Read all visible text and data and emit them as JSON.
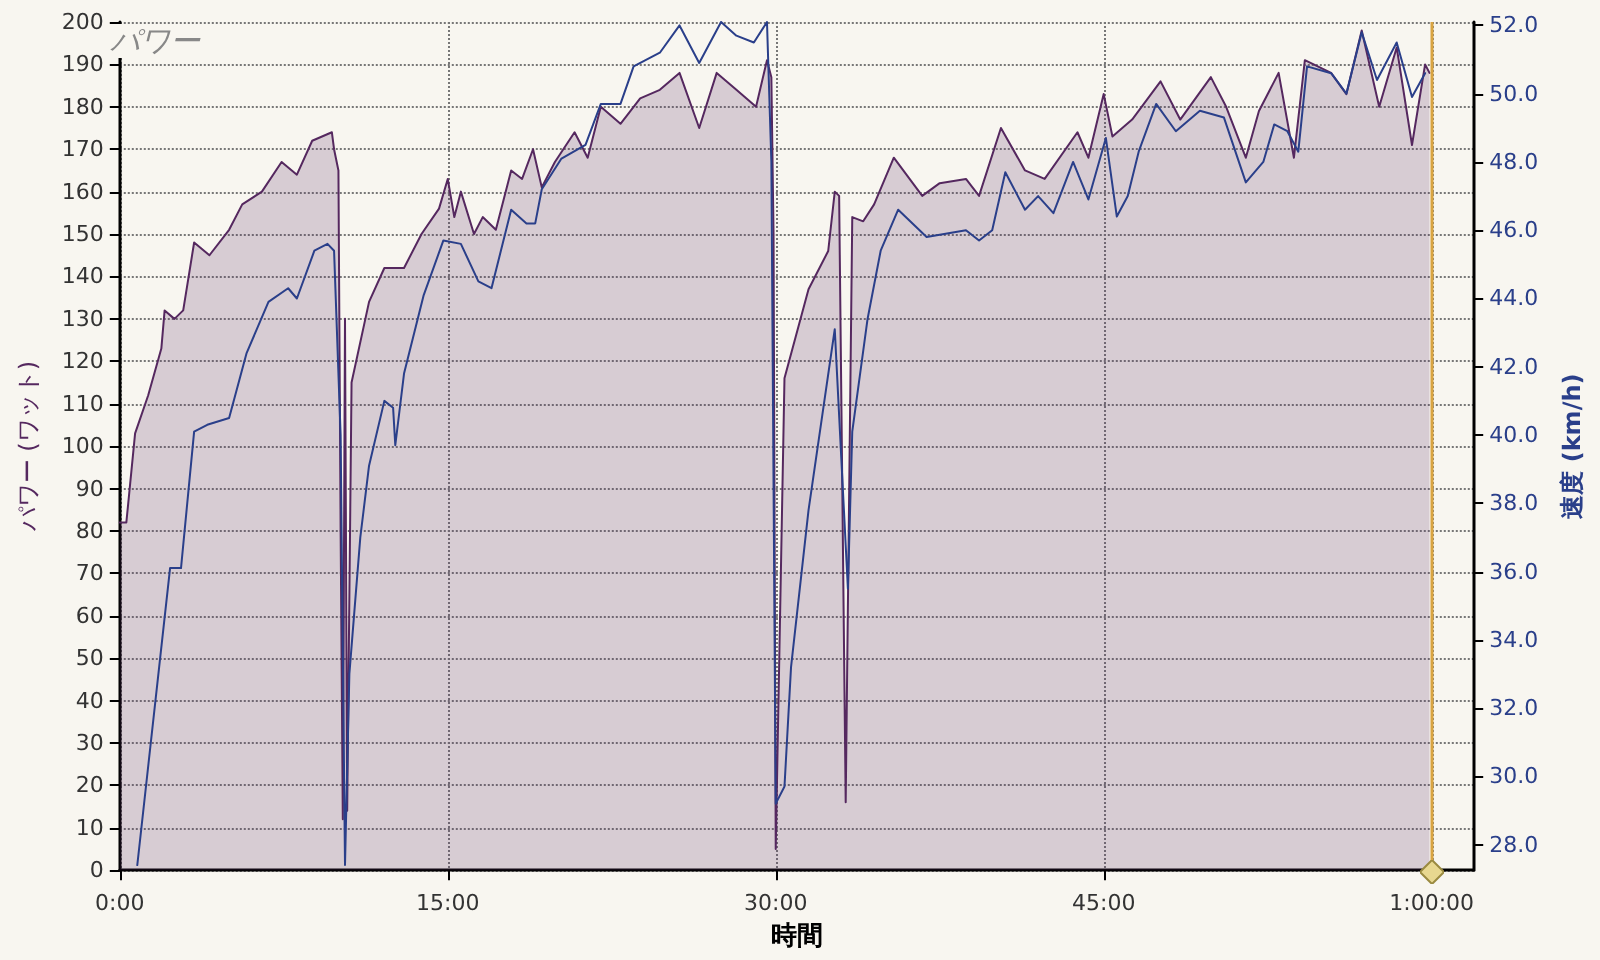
{
  "chart_data": {
    "type": "area",
    "title": "パワー",
    "xlabel": "時間",
    "ylabel": "パワー (ワット)",
    "y2label": "速度 (km/h)",
    "xlim": [
      0,
      61.9
    ],
    "xticks": [
      {
        "value": 0,
        "label": "0:00"
      },
      {
        "value": 15,
        "label": "15:00"
      },
      {
        "value": 30,
        "label": "30:00"
      },
      {
        "value": 45,
        "label": "45:00"
      },
      {
        "value": 60,
        "label": "1:00:00"
      }
    ],
    "ylim": [
      0,
      200
    ],
    "yticks": [
      0,
      10,
      20,
      30,
      40,
      50,
      60,
      70,
      80,
      90,
      100,
      110,
      120,
      130,
      140,
      150,
      160,
      170,
      180,
      190,
      200
    ],
    "y2lim": [
      27.25,
      52.1
    ],
    "y2ticks": [
      {
        "value": 28,
        "label": "28.0"
      },
      {
        "value": 30,
        "label": "30.0"
      },
      {
        "value": 32,
        "label": "32.0"
      },
      {
        "value": 34,
        "label": "34.0"
      },
      {
        "value": 36,
        "label": "36.0"
      },
      {
        "value": 38,
        "label": "38.0"
      },
      {
        "value": 40,
        "label": "40.0"
      },
      {
        "value": 42,
        "label": "42.0"
      },
      {
        "value": 44,
        "label": "44.0"
      },
      {
        "value": 46,
        "label": "46.0"
      },
      {
        "value": 48,
        "label": "48.0"
      },
      {
        "value": 50,
        "label": "50.0"
      },
      {
        "value": 52,
        "label": "52.0"
      }
    ],
    "grid": true,
    "marker": "none",
    "line_style": "solid",
    "ref_lines": [
      {
        "axis": "x",
        "value": 60,
        "color": "#d9a441"
      }
    ],
    "series": [
      {
        "color": "#55285f",
        "x": [
          0,
          0.3,
          0.7,
          1.3,
          1.9,
          2.05,
          2.5,
          2.9,
          3.4,
          4.1,
          5.0,
          5.6,
          6.5,
          7.4,
          8.1,
          8.8,
          9.7,
          9.8,
          10.0,
          10.1,
          10.2,
          10.3,
          10.4,
          10.6,
          11.4,
          12.1,
          13.0,
          13.8,
          14.6,
          15.0,
          15.3,
          15.6,
          16.2,
          16.6,
          17.2,
          17.9,
          18.4,
          18.9,
          19.3,
          19.9,
          20.8,
          21.4,
          22.0,
          22.9,
          23.8,
          24.7,
          25.6,
          26.5,
          27.3,
          28.2,
          29.1,
          29.6,
          29.8,
          29.9,
          30.0,
          30.4,
          31.5,
          32.4,
          32.7,
          32.9,
          33.2,
          33.5,
          34.0,
          34.5,
          35.4,
          36.7,
          37.5,
          38.7,
          39.3,
          40.3,
          41.4,
          42.3,
          43.8,
          44.3,
          45.0,
          45.4,
          46.3,
          47.6,
          48.5,
          49.9,
          50.6,
          51.5,
          52.1,
          53.0,
          53.7,
          54.2,
          55.4,
          56.1,
          56.8,
          57.6,
          58.4,
          59.1,
          59.7,
          59.9
        ],
        "values": [
          82,
          82,
          103,
          112,
          123,
          132,
          130,
          132,
          148,
          145,
          151,
          157,
          160,
          167,
          164,
          172,
          174,
          170,
          165,
          80,
          12,
          130,
          14,
          115,
          134,
          142,
          142,
          150,
          156,
          163,
          154,
          160,
          150,
          154,
          151,
          165,
          163,
          170,
          161,
          167,
          174,
          168,
          180,
          176,
          182,
          184,
          188,
          175,
          188,
          184,
          180,
          191,
          187,
          150,
          5,
          116,
          137,
          146,
          160,
          159,
          16,
          154,
          153,
          157,
          168,
          159,
          162,
          163,
          159,
          175,
          165,
          163,
          174,
          168,
          183,
          173,
          177,
          186,
          177,
          187,
          180,
          168,
          179,
          188,
          168,
          191,
          188,
          183,
          198,
          180,
          194,
          171,
          190,
          188
        ]
      },
      {
        "type": "line",
        "axis": "y2",
        "color": "#2a3f8a",
        "x": [
          0.8,
          1.8,
          2.3,
          2.8,
          3.4,
          4.0,
          5.0,
          5.8,
          6.8,
          7.7,
          8.1,
          8.9,
          9.5,
          9.8,
          10.1,
          10.3,
          10.5,
          11.0,
          11.4,
          12.1,
          12.5,
          12.6,
          13.0,
          13.9,
          14.8,
          15.6,
          16.4,
          17.0,
          17.9,
          18.6,
          19.0,
          19.3,
          20.2,
          21.3,
          22.0,
          22.9,
          23.5,
          24.7,
          25.6,
          26.5,
          27.5,
          28.2,
          29.0,
          29.6,
          29.8,
          30.0,
          30.4,
          30.7,
          31.5,
          32.7,
          33.3,
          33.5,
          34.2,
          34.8,
          35.6,
          36.9,
          38.7,
          39.3,
          39.9,
          40.5,
          41.4,
          42.0,
          42.7,
          43.6,
          44.3,
          45.1,
          45.6,
          46.1,
          46.6,
          47.4,
          48.3,
          49.4,
          50.5,
          51.5,
          52.3,
          52.8,
          53.4,
          53.9,
          54.3,
          55.4,
          56.1,
          56.8,
          57.5,
          58.4,
          59.1,
          59.7
        ],
        "values": [
          27.4,
          33.2,
          36.1,
          36.1,
          40.1,
          40.3,
          40.5,
          42.4,
          43.9,
          44.3,
          44.0,
          45.4,
          45.6,
          45.4,
          40,
          27.4,
          33.0,
          37.0,
          39.1,
          41.0,
          40.8,
          39.7,
          41.8,
          44.1,
          45.7,
          45.6,
          44.5,
          44.3,
          46.6,
          46.2,
          46.2,
          47.2,
          48.1,
          48.5,
          49.7,
          49.7,
          50.8,
          51.2,
          52.0,
          50.9,
          52.1,
          51.7,
          51.5,
          52.1,
          48,
          29.2,
          29.7,
          33.2,
          37.8,
          43.1,
          35.5,
          40.1,
          43.4,
          45.4,
          46.6,
          45.8,
          46.0,
          45.7,
          46.0,
          47.7,
          46.6,
          47.0,
          46.5,
          48.0,
          46.9,
          48.7,
          46.4,
          47.0,
          48.3,
          49.7,
          48.9,
          49.5,
          49.3,
          47.4,
          48.0,
          49.1,
          48.9,
          48.3,
          50.8,
          50.6,
          50.0,
          51.8,
          50.4,
          51.5,
          49.9,
          50.6
        ]
      }
    ]
  }
}
